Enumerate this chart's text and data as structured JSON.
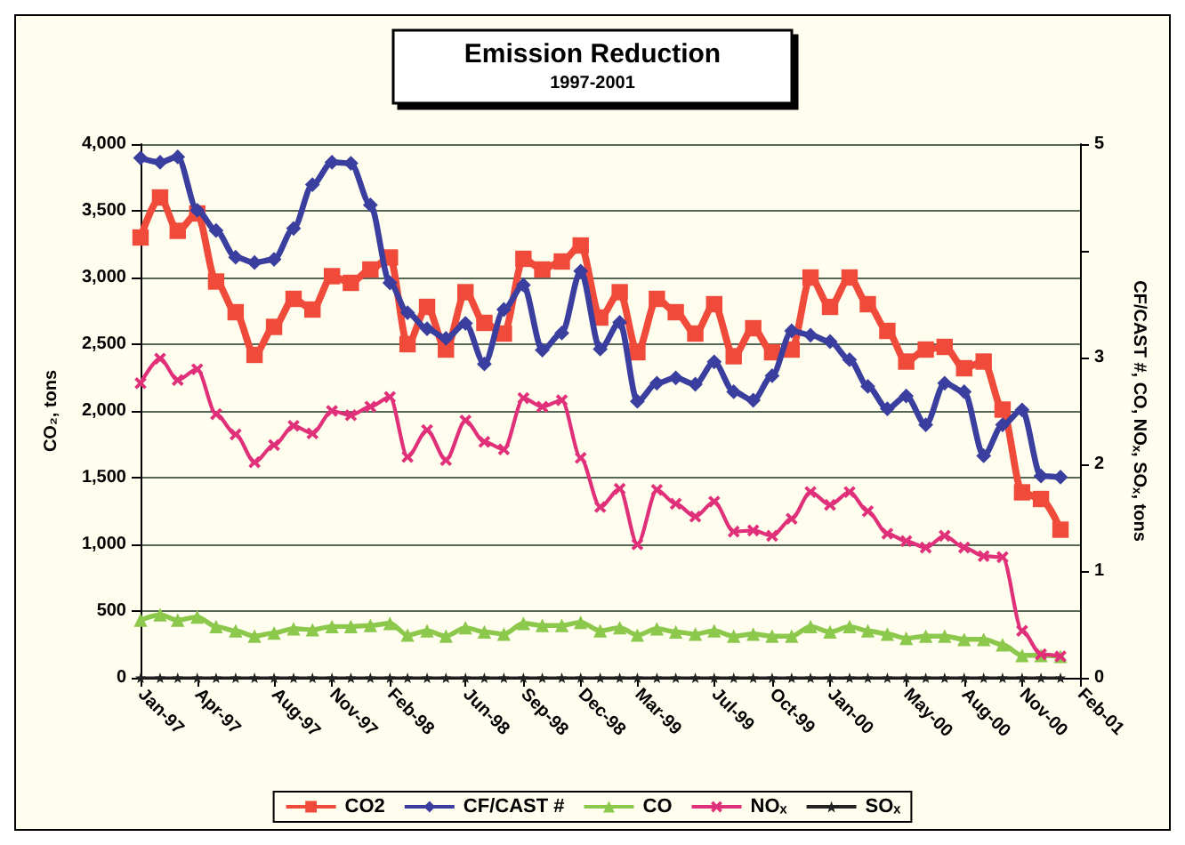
{
  "chart_data": {
    "type": "line",
    "title": "Emission Reduction",
    "subtitle": "1997-2001",
    "ylabel": "CO₂, tons",
    "y2label": "CF/CAST #, CO, NOₓ, SOₓ, tons",
    "x": [
      "1997-01",
      "1997-02",
      "1997-03",
      "1997-04",
      "1997-05",
      "1997-06",
      "1997-07",
      "1997-08",
      "1997-09",
      "1997-10",
      "1997-11",
      "1997-12",
      "1998-01",
      "1998-02",
      "1998-03",
      "1998-04",
      "1998-05",
      "1998-06",
      "1998-07",
      "1998-08",
      "1998-09",
      "1998-10",
      "1998-11",
      "1998-12",
      "1999-01",
      "1999-02",
      "1999-03",
      "1999-04",
      "1999-05",
      "1999-06",
      "1999-07",
      "1999-08",
      "1999-09",
      "1999-10",
      "1999-11",
      "1999-12",
      "2000-01",
      "2000-02",
      "2000-03",
      "2000-04",
      "2000-05",
      "2000-06",
      "2000-07",
      "2000-08",
      "2000-09",
      "2000-10",
      "2000-11",
      "2000-12",
      "2001-01"
    ],
    "xlim": [
      "1997-01",
      "2001-02"
    ],
    "xticks": [
      {
        "value": "1997-01",
        "label": "Jan-97"
      },
      {
        "value": "1997-04",
        "label": "Apr-97"
      },
      {
        "value": "1997-08",
        "label": "Aug-97"
      },
      {
        "value": "1997-11",
        "label": "Nov-97"
      },
      {
        "value": "1998-02",
        "label": "Feb-98"
      },
      {
        "value": "1998-06",
        "label": "Jun-98"
      },
      {
        "value": "1998-09",
        "label": "Sep-98"
      },
      {
        "value": "1998-12",
        "label": "Dec-98"
      },
      {
        "value": "1999-03",
        "label": "Mar-99"
      },
      {
        "value": "1999-07",
        "label": "Jul-99"
      },
      {
        "value": "1999-10",
        "label": "Oct-99"
      },
      {
        "value": "2000-01",
        "label": "Jan-00"
      },
      {
        "value": "2000-05",
        "label": "May-00"
      },
      {
        "value": "2000-08",
        "label": "Aug-00"
      },
      {
        "value": "2000-11",
        "label": "Nov-00"
      },
      {
        "value": "2001-02",
        "label": "Feb-01"
      }
    ],
    "ylim": [
      0,
      4000
    ],
    "yticks": [
      {
        "value": 0,
        "label": "0"
      },
      {
        "value": 500,
        "label": "500"
      },
      {
        "value": 1000,
        "label": "1,000"
      },
      {
        "value": 1500,
        "label": "1,500"
      },
      {
        "value": 2000,
        "label": "2,000"
      },
      {
        "value": 2500,
        "label": "2,500"
      },
      {
        "value": 3000,
        "label": "3,000"
      },
      {
        "value": 3500,
        "label": "3,500"
      },
      {
        "value": 4000,
        "label": "4,000"
      }
    ],
    "y2lim": [
      0,
      5
    ],
    "y2ticks": [
      0,
      1,
      2,
      3,
      {
        "value": 4,
        "label": null
      },
      5
    ],
    "grid": "y",
    "legend": "bottom",
    "line_style": "solid",
    "series": [
      {
        "name": "CO2",
        "color": "#f04a3a",
        "marker": "square",
        "values": [
          3300,
          3600,
          3350,
          3480,
          2970,
          2740,
          2420,
          2630,
          2840,
          2760,
          3010,
          2960,
          3060,
          3150,
          2500,
          2780,
          2460,
          2890,
          2660,
          2580,
          3140,
          3060,
          3120,
          3240,
          2700,
          2890,
          2440,
          2840,
          2740,
          2580,
          2800,
          2410,
          2620,
          2440,
          2460,
          3000,
          2780,
          3000,
          2800,
          2600,
          2370,
          2460,
          2480,
          2320,
          2370,
          2010,
          1390,
          1340,
          1110
        ]
      },
      {
        "name": "CF/CAST #",
        "color": "#3a3f9f",
        "marker": "diamond",
        "axis": "y2",
        "values": [
          4.87,
          4.83,
          4.88,
          4.38,
          4.19,
          3.94,
          3.89,
          3.92,
          4.21,
          4.62,
          4.83,
          4.82,
          4.43,
          3.7,
          3.42,
          3.27,
          3.18,
          3.32,
          2.94,
          3.45,
          3.68,
          3.07,
          3.23,
          3.81,
          3.08,
          3.33,
          2.59,
          2.76,
          2.81,
          2.75,
          2.96,
          2.68,
          2.6,
          2.83,
          3.25,
          3.21,
          3.15,
          2.98,
          2.73,
          2.52,
          2.64,
          2.37,
          2.76,
          2.68,
          2.08,
          2.37,
          2.51,
          1.89,
          1.88
        ]
      },
      {
        "name": "CO",
        "color": "#8cc84b",
        "marker": "triangle",
        "axis": "y2",
        "values": [
          0.54,
          0.59,
          0.54,
          0.57,
          0.48,
          0.44,
          0.39,
          0.42,
          0.46,
          0.45,
          0.48,
          0.48,
          0.49,
          0.51,
          0.4,
          0.44,
          0.39,
          0.47,
          0.43,
          0.41,
          0.51,
          0.49,
          0.49,
          0.52,
          0.44,
          0.47,
          0.4,
          0.46,
          0.43,
          0.41,
          0.44,
          0.39,
          0.41,
          0.39,
          0.39,
          0.48,
          0.43,
          0.48,
          0.44,
          0.41,
          0.37,
          0.39,
          0.39,
          0.36,
          0.36,
          0.31,
          0.21,
          0.21,
          0.2
        ]
      },
      {
        "name": "NOₓ",
        "color": "#e0307a",
        "marker": "cross",
        "axis": "y2",
        "values": [
          2.76,
          2.99,
          2.79,
          2.89,
          2.47,
          2.28,
          2.02,
          2.18,
          2.36,
          2.29,
          2.5,
          2.46,
          2.54,
          2.63,
          2.07,
          2.32,
          2.04,
          2.41,
          2.21,
          2.14,
          2.62,
          2.54,
          2.6,
          2.06,
          1.6,
          1.77,
          1.25,
          1.76,
          1.63,
          1.51,
          1.65,
          1.37,
          1.38,
          1.33,
          1.49,
          1.74,
          1.62,
          1.74,
          1.56,
          1.35,
          1.28,
          1.22,
          1.33,
          1.22,
          1.14,
          1.13,
          0.44,
          0.22,
          0.2
        ]
      },
      {
        "name": "SOₓ",
        "color": "#222222",
        "marker": "star",
        "axis": "y2",
        "values": [
          0,
          0,
          0,
          0,
          0,
          0,
          0,
          0,
          0,
          0,
          0,
          0,
          0,
          0,
          0,
          0,
          0,
          0,
          0,
          0,
          0,
          0,
          0,
          0,
          0,
          0,
          0,
          0,
          0,
          0,
          0,
          0,
          0,
          0,
          0,
          0,
          0,
          0,
          0,
          0,
          0,
          0,
          0,
          0,
          0,
          0,
          0,
          0,
          0
        ]
      }
    ]
  }
}
